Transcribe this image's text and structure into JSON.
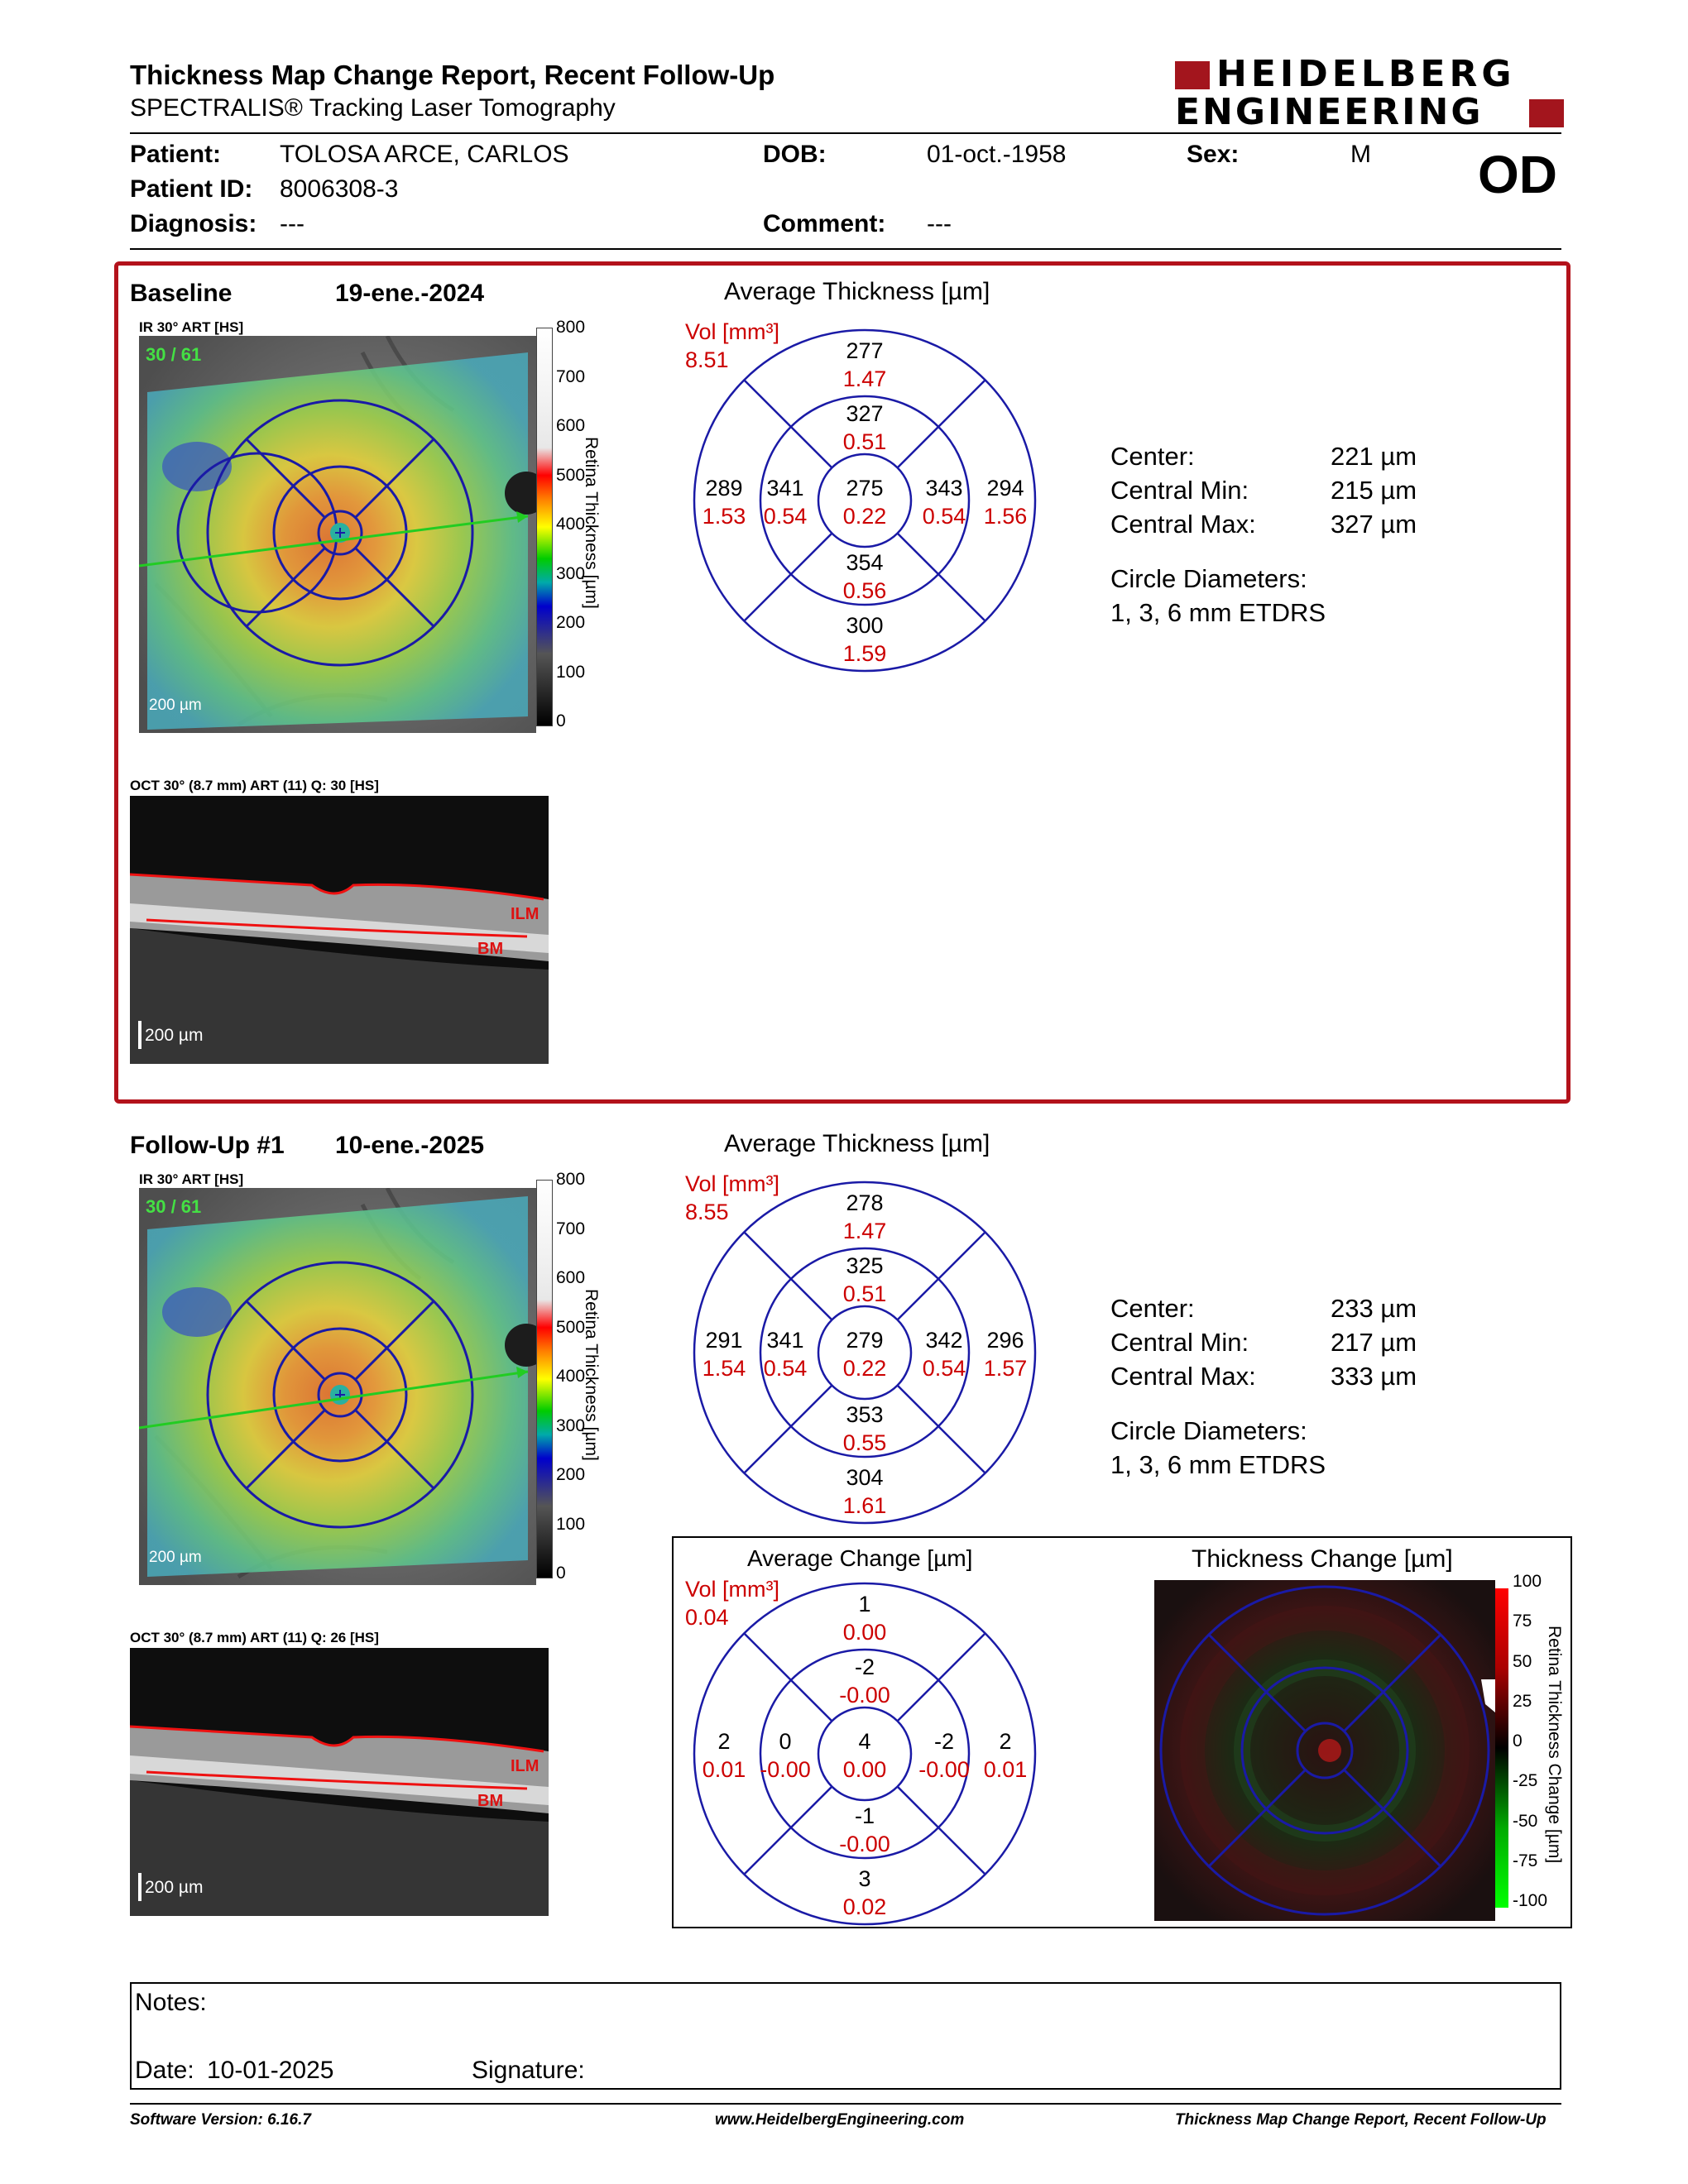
{
  "header": {
    "title": "Thickness Map Change Report, Recent Follow-Up",
    "subtitle": "SPECTRALIS® Tracking Laser Tomography",
    "logo_line1": "HEIDELBERG",
    "logo_line2": "ENGINEERING",
    "eye": "OD"
  },
  "patient": {
    "name_label": "Patient:",
    "name": "TOLOSA ARCE, CARLOS",
    "id_label": "Patient ID:",
    "id": "8006308-3",
    "diagnosis_label": "Diagnosis:",
    "diagnosis": "---",
    "dob_label": "DOB:",
    "dob": "01-oct.-1958",
    "comment_label": "Comment:",
    "comment": "---",
    "sex_label": "Sex:",
    "sex": "M"
  },
  "baseline": {
    "label": "Baseline",
    "date": "19-ene.-2024",
    "ir_label": "IR 30° ART [HS]",
    "ir_overlay": "30 / 61",
    "scale_bar": "200 µm",
    "oct_label": "OCT 30° (8.7 mm) ART (11) Q: 30 [HS]",
    "oct_scale": "200 µm",
    "layer_ilm": "ILM",
    "layer_bm": "BM",
    "colorbar_title": "Retina Thickness [µm]",
    "colorbar_ticks": [
      "800",
      "700",
      "600",
      "500",
      "400",
      "300",
      "200",
      "100",
      "0"
    ],
    "grid_title": "Average Thickness [µm]",
    "vol_label": "Vol [mm³]",
    "vol_total": "8.51",
    "sectors": {
      "outer_top": {
        "t": "277",
        "v": "1.47"
      },
      "inner_top": {
        "t": "327",
        "v": "0.51"
      },
      "outer_left": {
        "t": "289",
        "v": "1.53"
      },
      "inner_left": {
        "t": "341",
        "v": "0.54"
      },
      "center": {
        "t": "275",
        "v": "0.22"
      },
      "inner_right": {
        "t": "343",
        "v": "0.54"
      },
      "outer_right": {
        "t": "294",
        "v": "1.56"
      },
      "inner_bottom": {
        "t": "354",
        "v": "0.56"
      },
      "outer_bottom": {
        "t": "300",
        "v": "1.59"
      }
    },
    "stats": {
      "center_label": "Center:",
      "center": "221 µm",
      "min_label": "Central Min:",
      "min": "215 µm",
      "max_label": "Central Max:",
      "max": "327 µm",
      "diam_label": "Circle Diameters:",
      "diam": "1, 3, 6 mm ETDRS"
    }
  },
  "followup": {
    "label": "Follow-Up #1",
    "date": "10-ene.-2025",
    "ir_label": "IR 30° ART [HS]",
    "ir_overlay": "30 / 61",
    "scale_bar": "200 µm",
    "oct_label": "OCT 30° (8.7 mm) ART (11) Q: 26 [HS]",
    "oct_scale": "200 µm",
    "layer_ilm": "ILM",
    "layer_bm": "BM",
    "colorbar_title": "Retina Thickness [µm]",
    "colorbar_ticks": [
      "800",
      "700",
      "600",
      "500",
      "400",
      "300",
      "200",
      "100",
      "0"
    ],
    "grid_title": "Average Thickness [µm]",
    "vol_label": "Vol [mm³]",
    "vol_total": "8.55",
    "sectors": {
      "outer_top": {
        "t": "278",
        "v": "1.47"
      },
      "inner_top": {
        "t": "325",
        "v": "0.51"
      },
      "outer_left": {
        "t": "291",
        "v": "1.54"
      },
      "inner_left": {
        "t": "341",
        "v": "0.54"
      },
      "center": {
        "t": "279",
        "v": "0.22"
      },
      "inner_right": {
        "t": "342",
        "v": "0.54"
      },
      "outer_right": {
        "t": "296",
        "v": "1.57"
      },
      "inner_bottom": {
        "t": "353",
        "v": "0.55"
      },
      "outer_bottom": {
        "t": "304",
        "v": "1.61"
      }
    },
    "stats": {
      "center_label": "Center:",
      "center": "233 µm",
      "min_label": "Central Min:",
      "min": "217 µm",
      "max_label": "Central Max:",
      "max": "333 µm",
      "diam_label": "Circle Diameters:",
      "diam": "1, 3, 6 mm ETDRS"
    }
  },
  "change": {
    "grid_title": "Average Change [µm]",
    "vol_label": "Vol [mm³]",
    "vol_total": "0.04",
    "sectors": {
      "outer_top": {
        "t": "1",
        "v": "0.00"
      },
      "inner_top": {
        "t": "-2",
        "v": "-0.00"
      },
      "outer_left": {
        "t": "2",
        "v": "0.01"
      },
      "inner_left": {
        "t": "0",
        "v": "-0.00"
      },
      "center": {
        "t": "4",
        "v": "0.00"
      },
      "inner_right": {
        "t": "-2",
        "v": "-0.00"
      },
      "outer_right": {
        "t": "2",
        "v": "0.01"
      },
      "inner_bottom": {
        "t": "-1",
        "v": "-0.00"
      },
      "outer_bottom": {
        "t": "3",
        "v": "0.02"
      }
    },
    "map_title": "Thickness Change [µm]",
    "colorbar_title": "Retina Thickness Change [µm]",
    "colorbar_ticks": [
      "100",
      "75",
      "50",
      "25",
      "0",
      "-25",
      "-50",
      "-75",
      "-100"
    ]
  },
  "notes": {
    "notes_label": "Notes:",
    "date_label": "Date:",
    "date": "10-01-2025",
    "signature_label": "Signature:"
  },
  "footer": {
    "version": "Software Version: 6.16.7",
    "website": "www.HeidelbergEngineering.com",
    "report_name": "Thickness Map Change Report, Recent Follow-Up"
  },
  "colors": {
    "frame_red": "#b3121b",
    "grid_blue": "#1a1aa6",
    "value_red": "#cc0000",
    "logo_red": "#a3151d"
  }
}
